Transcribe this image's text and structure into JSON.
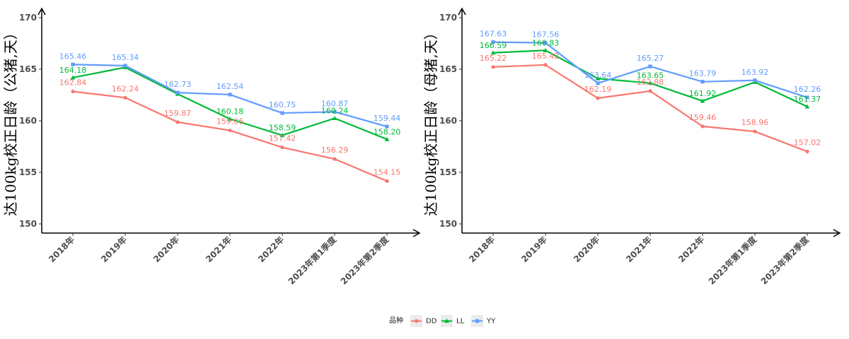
{
  "chart_data": [
    {
      "type": "line",
      "ylabel": "达100kg校正日龄（公猪,天）",
      "xlabel": "",
      "categories": [
        "2018年",
        "2019年",
        "2020年",
        "2021年",
        "2022年",
        "2023年第1季度",
        "2023年第2季度"
      ],
      "ylim": [
        150,
        170
      ],
      "yticks": [
        150,
        155,
        160,
        165,
        170
      ],
      "series": [
        {
          "name": "DD",
          "values": [
            162.84,
            162.24,
            159.87,
            159.06,
            157.42,
            156.29,
            154.15
          ],
          "labels": [
            "162.84",
            "162.24",
            "159.87",
            "159.06",
            "157.42",
            "156.29",
            "154.15"
          ]
        },
        {
          "name": "LL",
          "values": [
            164.18,
            165.18,
            162.6,
            160.18,
            158.59,
            160.24,
            158.2
          ],
          "labels": [
            "164.18",
            "",
            "",
            "160.18",
            "158.59",
            "160.24",
            "158.20"
          ]
        },
        {
          "name": "YY",
          "values": [
            165.46,
            165.34,
            162.73,
            162.54,
            160.75,
            160.87,
            159.44
          ],
          "labels": [
            "165.46",
            "165.34",
            "162.73",
            "162.54",
            "160.75",
            "160.87",
            "159.44"
          ]
        }
      ]
    },
    {
      "type": "line",
      "ylabel": "达100kg校正日龄（母猪,天）",
      "xlabel": "",
      "categories": [
        "2018年",
        "2019年",
        "2020年",
        "2021年",
        "2022年",
        "2023年第1季度",
        "2023年第2季度"
      ],
      "ylim": [
        150,
        170
      ],
      "yticks": [
        150,
        155,
        160,
        165,
        170
      ],
      "series": [
        {
          "name": "DD",
          "values": [
            165.22,
            165.42,
            162.19,
            162.88,
            159.46,
            158.96,
            157.02
          ],
          "labels": [
            "165.22",
            "165.42",
            "162.19",
            "162.88",
            "159.46",
            "158.96",
            "157.02"
          ]
        },
        {
          "name": "LL",
          "values": [
            166.59,
            166.83,
            164.1,
            163.65,
            161.92,
            163.75,
            161.37
          ],
          "labels": [
            "166.59",
            "166.83",
            "",
            "163.65",
            "161.92",
            "",
            "161.37"
          ]
        },
        {
          "name": "YY",
          "values": [
            167.63,
            167.56,
            163.64,
            165.27,
            163.79,
            163.92,
            162.26
          ],
          "labels": [
            "167.63",
            "167.56",
            "163.64",
            "165.27",
            "163.79",
            "163.92",
            "162.26"
          ]
        }
      ]
    }
  ],
  "legend": {
    "title": "品种",
    "items": [
      {
        "name": "DD",
        "color": "#F8766D",
        "marker": "circle"
      },
      {
        "name": "LL",
        "color": "#00BA38",
        "marker": "triangle"
      },
      {
        "name": "YY",
        "color": "#619CFF",
        "marker": "square"
      }
    ],
    "position": "bottom"
  },
  "colors": {
    "DD": "#F8766D",
    "LL": "#00BA38",
    "YY": "#619CFF",
    "axis": "#000000",
    "tick_text": "#4d4d4d"
  }
}
